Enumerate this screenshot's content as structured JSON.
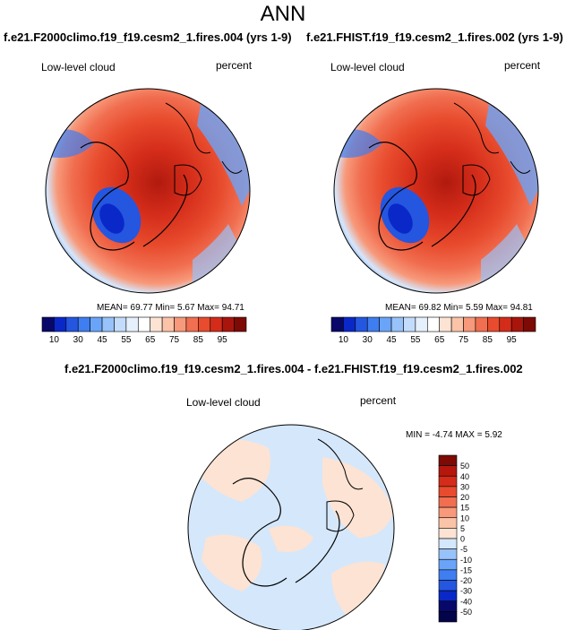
{
  "page": {
    "title": "ANN",
    "diff_title": "f.e21.F2000climo.f19_f19.cesm2_1.fires.004 - f.e21.FHIST.f19_f19.cesm2_1.fires.002"
  },
  "chart_data": [
    {
      "type": "heatmap",
      "projection": "polar stereographic (north)",
      "title": "f.e21.F2000climo.f19_f19.cesm2_1.fires.004 (yrs 1-9)",
      "variable": "Low-level cloud",
      "units": "percent",
      "stats_text": "MEAN=  69.77  Min=   5.67  Max=  94.71",
      "stats": {
        "mean": 69.77,
        "min": 5.67,
        "max": 94.71
      },
      "colorbar": {
        "orientation": "horizontal",
        "levels": [
          5,
          10,
          20,
          30,
          40,
          45,
          50,
          55,
          60,
          65,
          70,
          75,
          80,
          85,
          90,
          95
        ],
        "tick_labels": [
          "10",
          "30",
          "45",
          "55",
          "65",
          "75",
          "85",
          "95"
        ],
        "colors": [
          "#08086b",
          "#0a28c8",
          "#2456e0",
          "#3f7ef0",
          "#6aa4f8",
          "#98c2fa",
          "#c3dcfb",
          "#e6f0fc",
          "#ffffff",
          "#fde3d3",
          "#fbc3a8",
          "#f7997a",
          "#f16e50",
          "#e84b2d",
          "#d42c1a",
          "#a8150c",
          "#7d0a05"
        ]
      }
    },
    {
      "type": "heatmap",
      "projection": "polar stereographic (north)",
      "title": "f.e21.FHIST.f19_f19.cesm2_1.fires.002 (yrs 1-9)",
      "variable": "Low-level cloud",
      "units": "percent",
      "stats_text": "MEAN=  69.82  Min=   5.59  Max=  94.81",
      "stats": {
        "mean": 69.82,
        "min": 5.59,
        "max": 94.81
      },
      "colorbar": {
        "orientation": "horizontal",
        "levels": [
          5,
          10,
          20,
          30,
          40,
          45,
          50,
          55,
          60,
          65,
          70,
          75,
          80,
          85,
          90,
          95
        ],
        "tick_labels": [
          "10",
          "30",
          "45",
          "55",
          "65",
          "75",
          "85",
          "95"
        ],
        "colors": [
          "#08086b",
          "#0a28c8",
          "#2456e0",
          "#3f7ef0",
          "#6aa4f8",
          "#98c2fa",
          "#c3dcfb",
          "#e6f0fc",
          "#ffffff",
          "#fde3d3",
          "#fbc3a8",
          "#f7997a",
          "#f16e50",
          "#e84b2d",
          "#d42c1a",
          "#a8150c",
          "#7d0a05"
        ]
      }
    },
    {
      "type": "heatmap",
      "projection": "polar stereographic (north)",
      "title": "f.e21.F2000climo.f19_f19.cesm2_1.fires.004 - f.e21.FHIST.f19_f19.cesm2_1.fires.002",
      "variable": "Low-level cloud",
      "units": "percent",
      "stats_text": "MIN = -4.74 MAX =  5.92",
      "stats": {
        "min": -4.74,
        "max": 5.92
      },
      "colorbar": {
        "orientation": "vertical",
        "levels": [
          50,
          40,
          30,
          20,
          15,
          10,
          5,
          0,
          -5,
          -10,
          -15,
          -20,
          -30,
          -40,
          -50
        ],
        "tick_labels": [
          "50",
          "40",
          "30",
          "20",
          "15",
          "10",
          "5",
          "0",
          "-5",
          "-10",
          "-15",
          "-20",
          "-30",
          "-40",
          "-50"
        ],
        "colors": [
          "#7d0a05",
          "#b5170d",
          "#d42c1a",
          "#e84b2d",
          "#f16e50",
          "#f7997a",
          "#fbc3a8",
          "#fde3d3",
          "#d5e7fb",
          "#98c2fa",
          "#6aa4f8",
          "#3f7ef0",
          "#2456e0",
          "#0a28c8",
          "#08086b",
          "#04044a"
        ]
      }
    }
  ]
}
